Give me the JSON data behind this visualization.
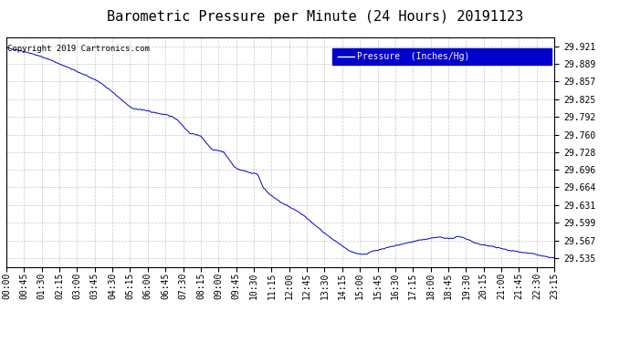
{
  "title": "Barometric Pressure per Minute (24 Hours) 20191123",
  "copyright": "Copyright 2019 Cartronics.com",
  "legend_label": "Pressure  (Inches/Hg)",
  "legend_bg": "#0000cc",
  "legend_fg": "#ffffff",
  "line_color": "#0000cc",
  "background_color": "#ffffff",
  "grid_color": "#b0b0b0",
  "yticks": [
    29.535,
    29.567,
    29.599,
    29.631,
    29.664,
    29.696,
    29.728,
    29.76,
    29.792,
    29.825,
    29.857,
    29.889,
    29.921
  ],
  "xtick_labels": [
    "00:00",
    "00:45",
    "01:30",
    "02:15",
    "03:00",
    "03:45",
    "04:30",
    "05:15",
    "06:00",
    "06:45",
    "07:30",
    "08:15",
    "09:00",
    "09:45",
    "10:30",
    "11:15",
    "12:00",
    "12:45",
    "13:30",
    "14:15",
    "15:00",
    "15:45",
    "16:30",
    "17:15",
    "18:00",
    "18:45",
    "19:30",
    "20:15",
    "21:00",
    "21:45",
    "22:30",
    "23:15"
  ],
  "ylim_min": 29.519,
  "ylim_max": 29.937,
  "title_fontsize": 11,
  "tick_fontsize": 7,
  "copyright_fontsize": 6.5,
  "control_t": [
    0,
    45,
    90,
    120,
    180,
    240,
    270,
    300,
    315,
    330,
    360,
    390,
    405,
    420,
    435,
    450,
    480,
    510,
    540,
    570,
    600,
    615,
    630,
    645,
    660,
    675,
    690,
    720,
    750,
    780,
    810,
    840,
    855,
    870,
    885,
    900,
    915,
    930,
    945,
    960,
    990,
    1020,
    1050,
    1080,
    1110,
    1125,
    1140,
    1155,
    1170,
    1185,
    1200,
    1215,
    1230,
    1260,
    1290,
    1320,
    1350,
    1380,
    1410,
    1439
  ],
  "control_p": [
    29.919,
    29.912,
    29.903,
    29.895,
    29.877,
    29.858,
    29.843,
    29.825,
    29.816,
    29.808,
    29.805,
    29.8,
    29.798,
    29.796,
    29.793,
    29.787,
    29.763,
    29.758,
    29.733,
    29.729,
    29.7,
    29.695,
    29.693,
    29.69,
    29.688,
    29.663,
    29.652,
    29.637,
    29.626,
    29.613,
    29.595,
    29.578,
    29.57,
    29.563,
    29.555,
    29.548,
    29.544,
    29.542,
    29.542,
    29.547,
    29.552,
    29.557,
    29.562,
    29.567,
    29.57,
    29.572,
    29.573,
    29.571,
    29.57,
    29.575,
    29.572,
    29.568,
    29.562,
    29.558,
    29.554,
    29.549,
    29.546,
    29.543,
    29.538,
    29.535
  ]
}
